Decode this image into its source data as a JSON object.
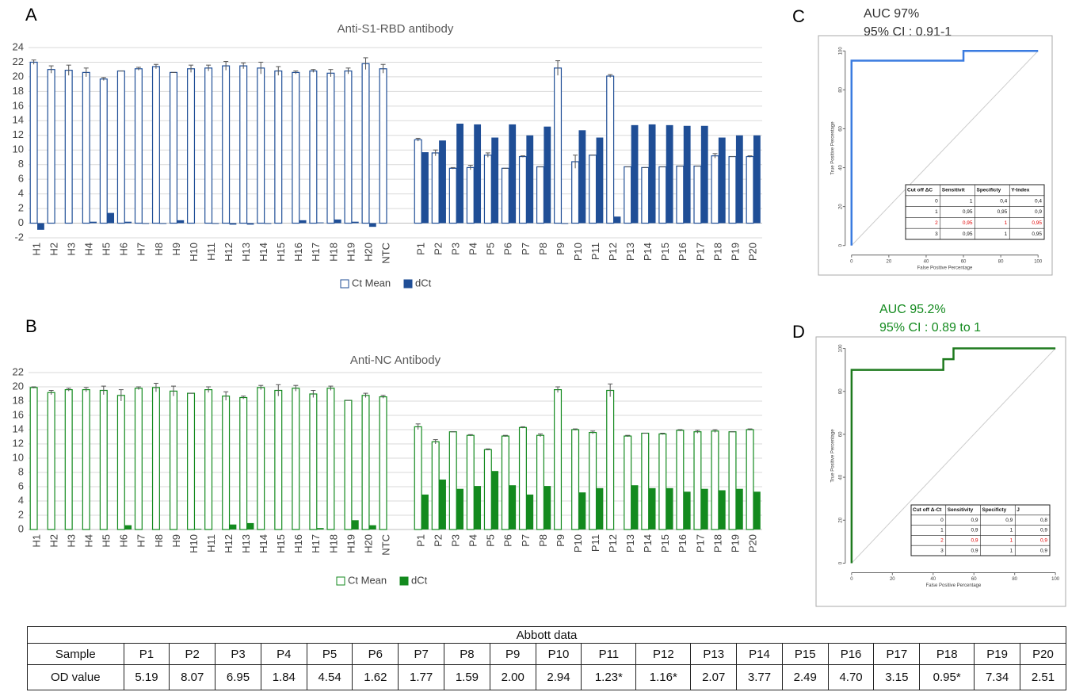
{
  "chart_data": [
    {
      "type": "bar",
      "label": "A",
      "title": "Anti-S1-RBD antibody",
      "categories": [
        "H1",
        "H2",
        "H3",
        "H4",
        "H5",
        "H6",
        "H7",
        "H8",
        "H9",
        "H10",
        "H11",
        "H12",
        "H13",
        "H14",
        "H15",
        "H16",
        "H17",
        "H18",
        "H19",
        "H20",
        "NTC",
        null,
        "P1",
        "P2",
        "P3",
        "P4",
        "P5",
        "P6",
        "P7",
        "P8",
        "P9",
        "P10",
        "P11",
        "P12",
        "P13",
        "P14",
        "P15",
        "P16",
        "P17",
        "P18",
        "P19",
        "P20"
      ],
      "series": [
        {
          "name": "Ct Mean",
          "color": "#1f4e96",
          "hollow": true,
          "values": [
            22.0,
            21.0,
            20.9,
            20.6,
            19.7,
            20.8,
            21.1,
            21.4,
            20.6,
            21.1,
            21.2,
            21.5,
            21.5,
            21.2,
            20.8,
            20.6,
            20.8,
            20.5,
            20.8,
            21.8,
            21.1,
            null,
            11.4,
            9.6,
            7.5,
            7.6,
            9.3,
            7.5,
            9.1,
            7.7,
            21.2,
            8.4,
            9.3,
            20.1,
            7.7,
            7.6,
            7.7,
            7.8,
            7.8,
            9.2,
            9.1,
            9.1
          ],
          "errors": [
            0.3,
            0.5,
            0.7,
            0.6,
            0.2,
            0,
            0.2,
            0.3,
            0,
            0.5,
            0.4,
            0.6,
            0.4,
            0.8,
            0.6,
            0.2,
            0.2,
            0.5,
            0.4,
            0.8,
            0.6,
            null,
            0.2,
            0.4,
            0.1,
            0.3,
            0.3,
            0,
            0.1,
            0,
            1.0,
            0.9,
            0,
            0.2,
            0,
            0,
            0,
            0,
            0,
            0.3,
            0,
            0.1
          ]
        },
        {
          "name": "dCt",
          "color": "#1f4e96",
          "hollow": false,
          "values": [
            -0.9,
            0,
            0,
            0.2,
            1.4,
            0.2,
            -0.1,
            -0.1,
            0.4,
            0,
            -0.1,
            -0.2,
            -0.2,
            -0.1,
            0,
            0.4,
            0.1,
            0.5,
            0.2,
            -0.5,
            null,
            null,
            9.7,
            11.3,
            13.6,
            13.5,
            11.7,
            13.5,
            12.0,
            13.2,
            -0.1,
            12.7,
            11.7,
            0.9,
            13.4,
            13.5,
            13.4,
            13.3,
            13.3,
            11.7,
            12.0,
            12.0
          ]
        }
      ],
      "ylim": [
        -2,
        24
      ],
      "yticks": [
        -2,
        0,
        2,
        4,
        6,
        8,
        10,
        12,
        14,
        16,
        18,
        20,
        22,
        24
      ],
      "grid": true
    },
    {
      "type": "bar",
      "label": "B",
      "title": "Anti-NC Antibody",
      "categories": [
        "H1",
        "H2",
        "H3",
        "H4",
        "H5",
        "H6",
        "H7",
        "H8",
        "H9",
        "H10",
        "H11",
        "H12",
        "H13",
        "H14",
        "H15",
        "H16",
        "H17",
        "H18",
        "H19",
        "H20",
        "NTC",
        null,
        "P1",
        "P2",
        "P3",
        "P4",
        "P5",
        "P6",
        "P7",
        "P8",
        "P9",
        "P10",
        "P11",
        "P12",
        "P13",
        "P14",
        "P15",
        "P16",
        "P17",
        "P18",
        "P19",
        "P20"
      ],
      "series": [
        {
          "name": "Ct Mean",
          "color": "#138a1e",
          "hollow": true,
          "values": [
            19.9,
            19.2,
            19.6,
            19.6,
            19.5,
            18.8,
            19.8,
            19.9,
            19.4,
            19.1,
            19.6,
            18.7,
            18.5,
            19.9,
            19.5,
            19.8,
            19.0,
            19.8,
            18.1,
            18.8,
            18.6,
            null,
            14.4,
            12.3,
            13.7,
            13.2,
            11.2,
            13.1,
            14.3,
            13.2,
            19.6,
            14.0,
            13.6,
            19.5,
            13.1,
            13.5,
            13.4,
            13.9,
            13.7,
            13.8,
            13.7,
            14.0
          ],
          "errors": [
            0.1,
            0.3,
            0.2,
            0.3,
            0.6,
            0.8,
            0.2,
            0.6,
            0.7,
            0,
            0.4,
            0.6,
            0.2,
            0.3,
            0.8,
            0.4,
            0.5,
            0.3,
            0,
            0.3,
            0.2,
            null,
            0.4,
            0.3,
            0,
            0.1,
            0.1,
            0.1,
            0.1,
            0.2,
            0.4,
            0.1,
            0.2,
            0.9,
            0.1,
            0,
            0.1,
            0.1,
            0.2,
            0.2,
            0,
            0.1
          ]
        },
        {
          "name": "dCt",
          "color": "#138a1e",
          "hollow": false,
          "values": [
            0,
            0,
            0,
            0,
            0,
            0.6,
            0,
            0,
            0,
            0.1,
            0,
            0.7,
            0.9,
            0,
            0,
            0,
            0.2,
            0,
            1.3,
            0.6,
            null,
            null,
            4.9,
            7.0,
            5.7,
            6.1,
            8.2,
            6.2,
            4.9,
            6.1,
            0,
            5.2,
            5.8,
            0,
            6.2,
            5.8,
            5.8,
            5.3,
            5.7,
            5.5,
            5.7,
            5.3
          ]
        }
      ],
      "ylim": [
        0,
        22
      ],
      "yticks": [
        0,
        2,
        4,
        6,
        8,
        10,
        12,
        14,
        16,
        18,
        20,
        22
      ],
      "grid": true
    },
    {
      "type": "roc",
      "label": "C",
      "title": "AUC 97%",
      "subtitle": "95% CI : 0.91-1",
      "title_color": "#333333",
      "x": [
        0,
        0,
        60,
        60,
        100
      ],
      "values": [
        0,
        95,
        95,
        100,
        100
      ],
      "color": "#3a7be0",
      "xlabel": "False Positive Percentage",
      "ylabel": "True Positive Percentage",
      "xlim": [
        -5,
        105
      ],
      "ylim": [
        -5,
        105
      ],
      "xticks": [
        0,
        20,
        40,
        60,
        80,
        100
      ],
      "yticks": [
        0,
        20,
        40,
        60,
        80,
        100
      ],
      "table": {
        "header": [
          "Cut off ΔC",
          "Sensitivit",
          "Specificty",
          "Y-Index"
        ],
        "rows": [
          [
            "0",
            "1",
            "0,4",
            "0,4"
          ],
          [
            "1",
            "0,95",
            "0,95",
            "0,9"
          ],
          [
            "2",
            "0,95",
            "1",
            "0,95"
          ],
          [
            "3",
            "0,95",
            "1",
            "0,95"
          ]
        ],
        "highlight_row": 2,
        "highlight_color": "#e00000"
      }
    },
    {
      "type": "roc",
      "label": "D",
      "title": "AUC 95.2%",
      "subtitle": "95% CI : 0.89 to 1",
      "title_color": "#138a1e",
      "x": [
        0,
        0,
        45,
        45,
        50,
        50,
        100
      ],
      "values": [
        0,
        90,
        90,
        95,
        95,
        100,
        100
      ],
      "color": "#1e7a1e",
      "xlabel": "False Positive Percentage",
      "ylabel": "True Positive Percentage",
      "xlim": [
        -5,
        105
      ],
      "ylim": [
        -5,
        105
      ],
      "xticks": [
        0,
        20,
        40,
        60,
        80,
        100
      ],
      "yticks": [
        0,
        20,
        40,
        60,
        80,
        100
      ],
      "table": {
        "header": [
          "Cut off Δ-Ct",
          "Sensitivity",
          "Specificty",
          "J"
        ],
        "rows": [
          [
            "0",
            "0,9",
            "0,9",
            "0,8"
          ],
          [
            "1",
            "0,9",
            "1",
            "0,9"
          ],
          [
            "2",
            "0,9",
            "1",
            "0,9"
          ],
          [
            "3",
            "0,9",
            "1",
            "0,9"
          ]
        ],
        "highlight_row": 2,
        "highlight_color": "#e00000"
      }
    }
  ],
  "table": {
    "title": "Abbott data",
    "header": [
      "Sample",
      "P1",
      "P2",
      "P3",
      "P4",
      "P5",
      "P6",
      "P7",
      "P8",
      "P9",
      "P10",
      "P11",
      "P12",
      "P13",
      "P14",
      "P15",
      "P16",
      "P17",
      "P18",
      "P19",
      "P20"
    ],
    "rows": [
      [
        "OD value",
        "5.19",
        "8.07",
        "6.95",
        "1.84",
        "4.54",
        "1.62",
        "1.77",
        "1.59",
        "2.00",
        "2.94",
        "1.23*",
        "1.16*",
        "2.07",
        "3.77",
        "2.49",
        "4.70",
        "3.15",
        "0.95*",
        "7.34",
        "2.51"
      ]
    ]
  }
}
